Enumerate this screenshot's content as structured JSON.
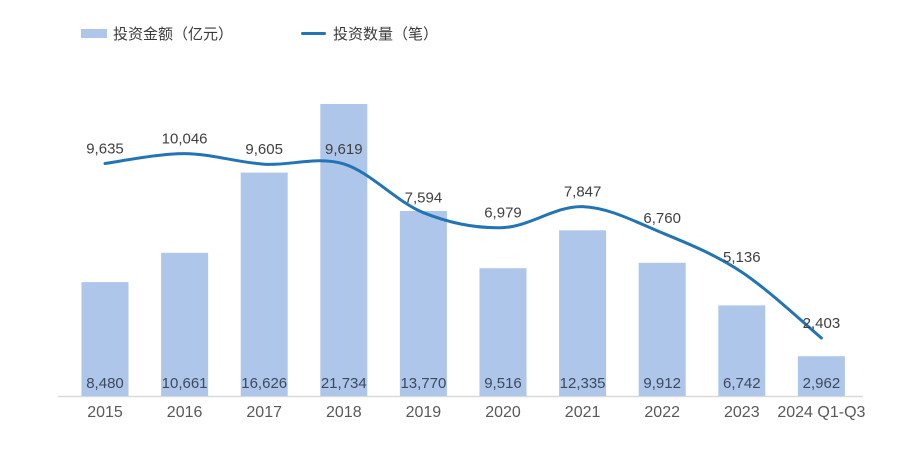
{
  "chart_data": {
    "type": "combo",
    "title": "",
    "xlabel": "",
    "ylabel": "",
    "grid": false,
    "legend_position": "top-left",
    "value_labels_shown": true,
    "bar_value_label_position": "inside-base",
    "line_value_label_position": "above-point",
    "categories": [
      "2015",
      "2016",
      "2017",
      "2018",
      "2019",
      "2020",
      "2021",
      "2022",
      "2023",
      "2024 Q1-Q3"
    ],
    "series": [
      {
        "name": "投资金额（亿元）",
        "type": "bar",
        "values": [
          8480,
          10661,
          16626,
          21734,
          13770,
          9516,
          12335,
          9912,
          6742,
          2962
        ],
        "color": "#AEC6EA"
      },
      {
        "name": "投资数量（笔）",
        "type": "line",
        "values": [
          9635,
          10046,
          9605,
          9619,
          7594,
          6979,
          7847,
          6760,
          5136,
          2403
        ],
        "color": "#2374B5"
      }
    ],
    "colors": {
      "bar_fill": "#AEC6EA",
      "line_stroke": "#2374B5",
      "bar_label": "#3D4A5C",
      "line_label": "#404040",
      "category_label": "#595959",
      "axis_line": "#D9D9D9",
      "background": "#FFFFFF"
    }
  }
}
